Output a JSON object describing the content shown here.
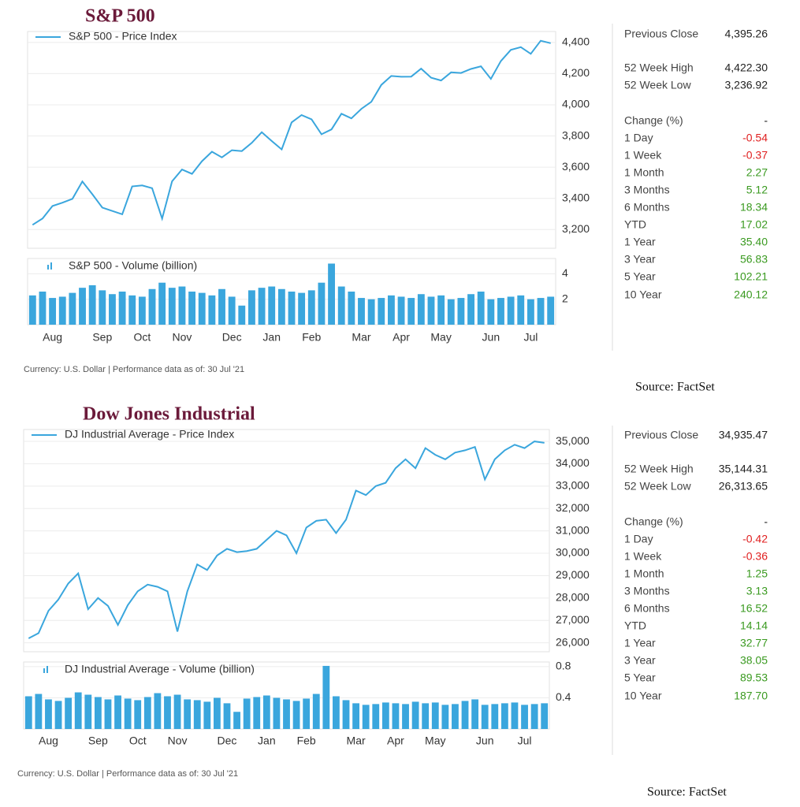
{
  "panels": [
    {
      "title": "S&P 500",
      "stats": {
        "rows": [
          {
            "label": "Previous Close",
            "value": "4,395.26"
          },
          {
            "label": "52 Week High",
            "value": "4,422.30"
          },
          {
            "label": "52 Week Low",
            "value": "3,236.92"
          },
          {
            "label": "Change (%)",
            "value": "-"
          },
          {
            "label": "1 Day",
            "value": "-0.54",
            "color": "#e02020"
          },
          {
            "label": "1 Week",
            "value": "-0.37",
            "color": "#e02020"
          },
          {
            "label": "1 Month",
            "value": "2.27",
            "color": "#3a9a20"
          },
          {
            "label": "3 Months",
            "value": "5.12",
            "color": "#3a9a20"
          },
          {
            "label": "6 Months",
            "value": "18.34",
            "color": "#3a9a20"
          },
          {
            "label": "YTD",
            "value": "17.02",
            "color": "#3a9a20"
          },
          {
            "label": "1 Year",
            "value": "35.40",
            "color": "#3a9a20"
          },
          {
            "label": "3 Year",
            "value": "56.83",
            "color": "#3a9a20"
          },
          {
            "label": "5 Year",
            "value": "102.21",
            "color": "#3a9a20"
          },
          {
            "label": "10 Year",
            "value": "240.12",
            "color": "#3a9a20"
          }
        ]
      },
      "footnote": "Currency: U.S. Dollar | Performance data as of: 30 Jul '21",
      "source": "Source: FactSet"
    },
    {
      "title": "Dow Jones Industrial",
      "stats": {
        "rows": [
          {
            "label": "Previous Close",
            "value": "34,935.47"
          },
          {
            "label": "52 Week High",
            "value": "35,144.31"
          },
          {
            "label": "52 Week Low",
            "value": "26,313.65"
          },
          {
            "label": "Change (%)",
            "value": "-"
          },
          {
            "label": "1 Day",
            "value": "-0.42",
            "color": "#e02020"
          },
          {
            "label": "1 Week",
            "value": "-0.36",
            "color": "#e02020"
          },
          {
            "label": "1 Month",
            "value": "1.25",
            "color": "#3a9a20"
          },
          {
            "label": "3 Months",
            "value": "3.13",
            "color": "#3a9a20"
          },
          {
            "label": "6 Months",
            "value": "16.52",
            "color": "#3a9a20"
          },
          {
            "label": "YTD",
            "value": "14.14",
            "color": "#3a9a20"
          },
          {
            "label": "1 Year",
            "value": "32.77",
            "color": "#3a9a20"
          },
          {
            "label": "3 Year",
            "value": "38.05",
            "color": "#3a9a20"
          },
          {
            "label": "5 Year",
            "value": "89.53",
            "color": "#3a9a20"
          },
          {
            "label": "10 Year",
            "value": "187.70",
            "color": "#3a9a20"
          }
        ]
      },
      "footnote": "Currency: U.S. Dollar | Performance data as of: 30 Jul '21",
      "source": "Source: FactSet"
    }
  ],
  "chart_data": [
    {
      "type": "line",
      "grid": true,
      "series": [
        {
          "name": "S&P 500 - Price Index",
          "color": "#3aa6dd",
          "values": [
            3230,
            3271,
            3351,
            3372,
            3397,
            3508,
            3426,
            3341,
            3319,
            3298,
            3477,
            3483,
            3465,
            3270,
            3509,
            3585,
            3557,
            3638,
            3699,
            3663,
            3709,
            3703,
            3756,
            3824,
            3768,
            3714,
            3887,
            3934,
            3907,
            3811,
            3842,
            3943,
            3913,
            3974,
            4019,
            4128,
            4185,
            4180,
            4181,
            4232,
            4174,
            4156,
            4208,
            4204,
            4230,
            4247,
            4166,
            4281,
            4352,
            4370,
            4327,
            4411,
            4395
          ]
        }
      ],
      "ylim": [
        3080,
        4470
      ],
      "yticks": [
        {
          "value": 3200,
          "label": "3,200"
        },
        {
          "value": 3400,
          "label": "3,400"
        },
        {
          "value": 3600,
          "label": "3,600"
        },
        {
          "value": 3800,
          "label": "3,800"
        },
        {
          "value": 4000,
          "label": "4,000"
        },
        {
          "value": 4200,
          "label": "4,200"
        },
        {
          "value": 4400,
          "label": "4,400"
        }
      ]
    },
    {
      "type": "bar",
      "grid": true,
      "categories": [
        null,
        null,
        "Aug",
        null,
        null,
        null,
        null,
        "Sep",
        null,
        null,
        null,
        "Oct",
        null,
        null,
        null,
        "Nov",
        null,
        null,
        null,
        null,
        "Dec",
        null,
        null,
        null,
        "Jan",
        null,
        null,
        null,
        "Feb",
        null,
        null,
        null,
        null,
        "Mar",
        null,
        null,
        null,
        "Apr",
        null,
        null,
        null,
        "May",
        null,
        null,
        null,
        null,
        "Jun",
        null,
        null,
        null,
        "Jul",
        null,
        null
      ],
      "series": [
        {
          "name": "S&P 500 - Volume (billion)",
          "color": "#3aa6dd",
          "values": [
            2.3,
            2.6,
            2.1,
            2.2,
            2.5,
            2.9,
            3.1,
            2.7,
            2.4,
            2.6,
            2.3,
            2.2,
            2.8,
            3.3,
            2.9,
            3.0,
            2.6,
            2.5,
            2.3,
            2.8,
            2.2,
            1.5,
            2.7,
            2.9,
            3.0,
            2.8,
            2.6,
            2.5,
            2.7,
            3.3,
            4.8,
            3.0,
            2.6,
            2.1,
            2.0,
            2.1,
            2.3,
            2.2,
            2.1,
            2.4,
            2.2,
            2.3,
            2.0,
            2.1,
            2.4,
            2.6,
            2.0,
            2.1,
            2.2,
            2.3,
            2.0,
            2.1,
            2.2
          ]
        }
      ],
      "ylim": [
        0,
        5.2
      ],
      "yticks": [
        2,
        4
      ]
    },
    {
      "type": "line",
      "grid": true,
      "series": [
        {
          "name": "DJ Industrial Average - Price Index",
          "color": "#3aa6dd",
          "values": [
            26200,
            26430,
            27430,
            27930,
            28650,
            29100,
            27500,
            28000,
            27650,
            26800,
            27680,
            28300,
            28600,
            28500,
            28300,
            26500,
            28300,
            29500,
            29250,
            29900,
            30200,
            30050,
            30100,
            30200,
            30600,
            31000,
            30800,
            30000,
            31150,
            31450,
            31500,
            30900,
            31500,
            32800,
            32600,
            33000,
            33150,
            33800,
            34200,
            33800,
            34700,
            34400,
            34200,
            34500,
            34600,
            34750,
            33300,
            34200,
            34600,
            34850,
            34700,
            35000,
            34935
          ]
        }
      ],
      "ylim": [
        25600,
        35530
      ],
      "yticks": [
        {
          "value": 26000,
          "label": "26,000"
        },
        {
          "value": 27000,
          "label": "27,000"
        },
        {
          "value": 28000,
          "label": "28,000"
        },
        {
          "value": 29000,
          "label": "29,000"
        },
        {
          "value": 30000,
          "label": "30,000"
        },
        {
          "value": 31000,
          "label": "31,000"
        },
        {
          "value": 32000,
          "label": "32,000"
        },
        {
          "value": 33000,
          "label": "33,000"
        },
        {
          "value": 34000,
          "label": "34,000"
        },
        {
          "value": 35000,
          "label": "35,000"
        }
      ]
    },
    {
      "type": "bar",
      "grid": true,
      "categories": [
        null,
        null,
        "Aug",
        null,
        null,
        null,
        null,
        "Sep",
        null,
        null,
        null,
        "Oct",
        null,
        null,
        null,
        "Nov",
        null,
        null,
        null,
        null,
        "Dec",
        null,
        null,
        null,
        "Jan",
        null,
        null,
        null,
        "Feb",
        null,
        null,
        null,
        null,
        "Mar",
        null,
        null,
        null,
        "Apr",
        null,
        null,
        null,
        "May",
        null,
        null,
        null,
        null,
        "Jun",
        null,
        null,
        null,
        "Jul",
        null,
        null
      ],
      "series": [
        {
          "name": "DJ Industrial Average - Volume (billion)",
          "color": "#3aa6dd",
          "values": [
            0.42,
            0.45,
            0.38,
            0.36,
            0.4,
            0.47,
            0.44,
            0.41,
            0.38,
            0.43,
            0.39,
            0.37,
            0.41,
            0.46,
            0.42,
            0.44,
            0.38,
            0.37,
            0.35,
            0.4,
            0.33,
            0.22,
            0.39,
            0.41,
            0.43,
            0.4,
            0.38,
            0.36,
            0.39,
            0.45,
            0.81,
            0.42,
            0.37,
            0.33,
            0.31,
            0.32,
            0.34,
            0.33,
            0.32,
            0.35,
            0.33,
            0.34,
            0.31,
            0.32,
            0.36,
            0.38,
            0.31,
            0.32,
            0.33,
            0.34,
            0.31,
            0.32,
            0.33
          ]
        }
      ],
      "ylim": [
        0,
        0.86
      ],
      "yticks": [
        0.4,
        0.8
      ]
    }
  ]
}
